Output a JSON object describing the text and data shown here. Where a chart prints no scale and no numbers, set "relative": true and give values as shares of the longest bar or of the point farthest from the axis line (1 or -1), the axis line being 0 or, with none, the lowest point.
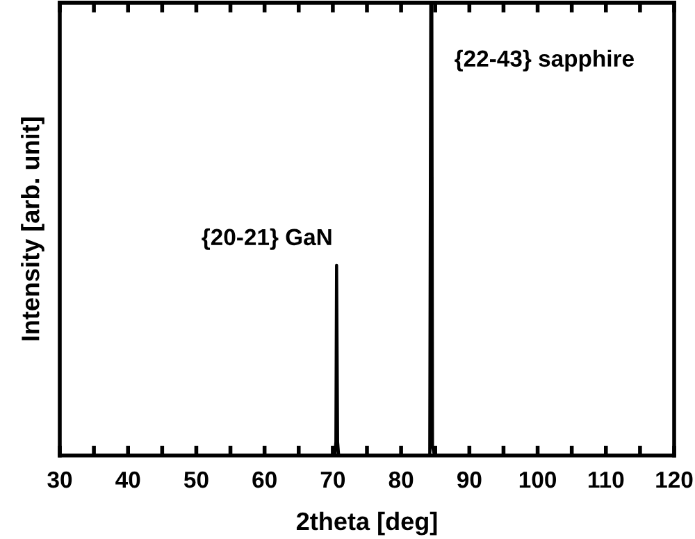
{
  "chart_data": {
    "type": "line",
    "relative": true,
    "xlabel": "2theta [deg]",
    "ylabel": "Intensity [arb. unit]",
    "xlim": [
      30,
      120
    ],
    "xticks": [
      30,
      {
        "value": 35,
        "label": null
      },
      40,
      {
        "value": 45,
        "label": null
      },
      50,
      {
        "value": 55,
        "label": null
      },
      60,
      {
        "value": 65,
        "label": null
      },
      70,
      {
        "value": 75,
        "label": null
      },
      80,
      {
        "value": 85,
        "label": null
      },
      90,
      {
        "value": 95,
        "label": null
      },
      100,
      {
        "value": 105,
        "label": null
      },
      110,
      {
        "value": 115,
        "label": null
      },
      120
    ],
    "series": [
      {
        "color": "#000000",
        "x": [
          30,
          70.3,
          70.45,
          70.55,
          70.7,
          70.85,
          84.2,
          84.35,
          84.5,
          84.6,
          84.9,
          120
        ],
        "values": [
          0,
          0,
          0.03,
          0.42,
          0.03,
          0,
          0,
          1,
          1,
          0.02,
          0,
          0
        ]
      }
    ],
    "annotations": [
      {
        "text": "{20-21} GaN",
        "x": 70.55,
        "y": 0.42
      },
      {
        "text": "{22-43} sapphire",
        "x": 84.4,
        "y": 1
      }
    ],
    "marker": "none",
    "line_style": "solid"
  }
}
